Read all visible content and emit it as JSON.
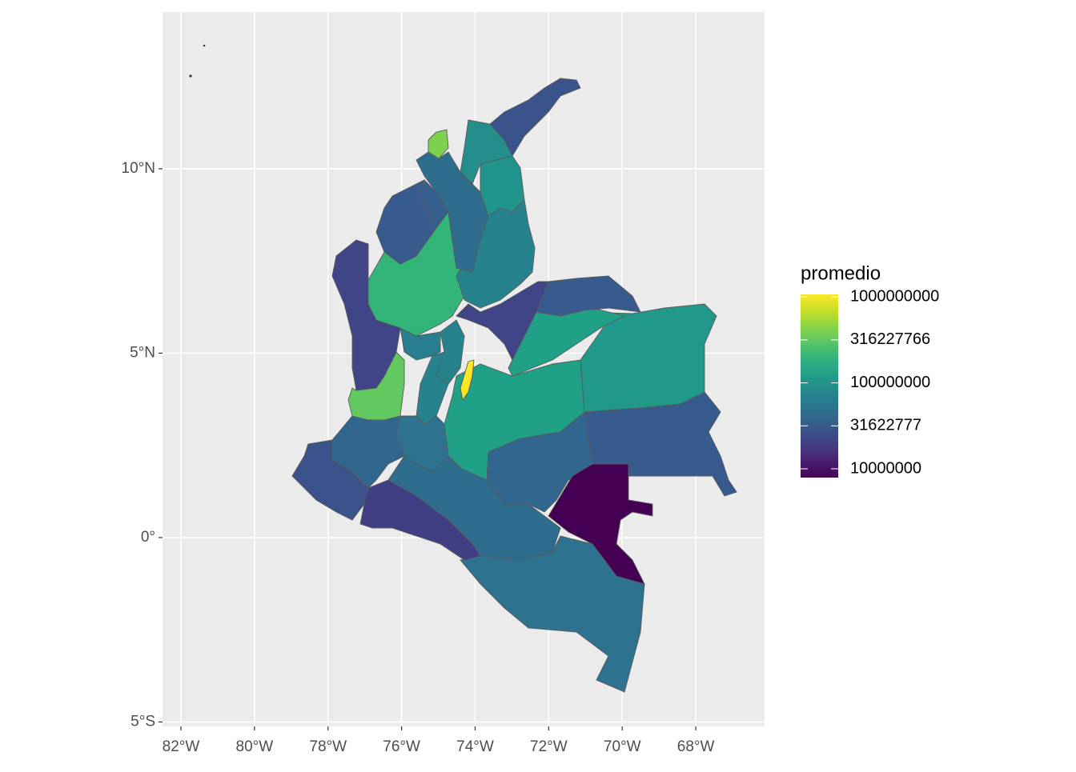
{
  "chart_data": {
    "type": "choropleth",
    "legend_title": "promedio",
    "values": [
      50000000,
      45000000,
      40000000,
      32000000,
      7900000,
      20000000,
      28000000,
      40000000,
      50000000,
      316000000,
      71000000,
      126000000,
      110000000,
      126000000,
      32000000,
      22000000,
      71000000,
      1060000000,
      63000000,
      22000000,
      200000000,
      71000000,
      32000000,
      35000000,
      45000000,
      100000000,
      89000000,
      400000000,
      28000000
    ],
    "xlim": [
      -82.5,
      -66.13
    ],
    "ylim": [
      -5.12,
      14.25
    ],
    "xticks": [
      {
        "value": -82,
        "label": "82°W"
      },
      {
        "value": -80,
        "label": "80°W"
      },
      {
        "value": -78,
        "label": "78°W"
      },
      {
        "value": -76,
        "label": "76°W"
      },
      {
        "value": -74,
        "label": "74°W"
      },
      {
        "value": -72,
        "label": "72°W"
      },
      {
        "value": -70,
        "label": "70°W"
      },
      {
        "value": -68,
        "label": "68°W"
      }
    ],
    "yticks": [
      {
        "value": -5,
        "label": "5°S"
      },
      {
        "value": 0,
        "label": "0°"
      },
      {
        "value": 5,
        "label": "5°N"
      },
      {
        "value": 10,
        "label": "10°N"
      }
    ],
    "colorbar_lim": [
      7900000,
      1070000000
    ],
    "colorbar_ticks": [
      10000000,
      31622777,
      100000000,
      316227766,
      1000000000
    ],
    "colorbar_log": true,
    "grid": true
  }
}
